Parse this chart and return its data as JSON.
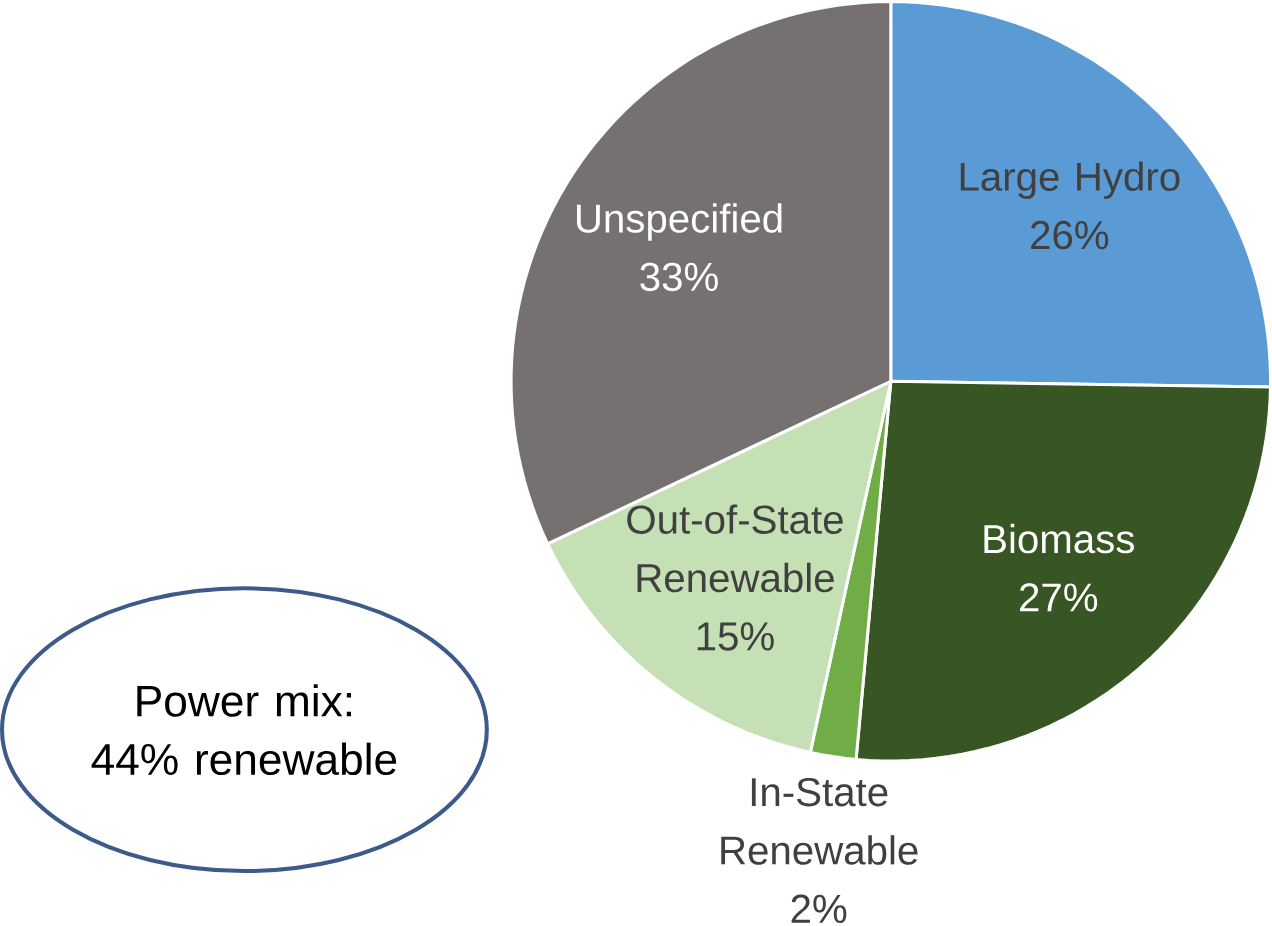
{
  "chart_data": {
    "type": "pie",
    "categories": [
      "Large Hydro",
      "Biomass",
      "In-State Renewable",
      "Out-of-State Renewable",
      "Unspecified"
    ],
    "values": [
      26,
      27,
      2,
      15,
      33
    ],
    "value_labels": [
      "26%",
      "27%",
      "2%",
      "15%",
      "33%"
    ],
    "colors": [
      "#5b9bd5",
      "#375623",
      "#70ad47",
      "#c5e0b4",
      "#767171"
    ],
    "annotations": [
      "Power mix: 44% renewable"
    ]
  }
}
